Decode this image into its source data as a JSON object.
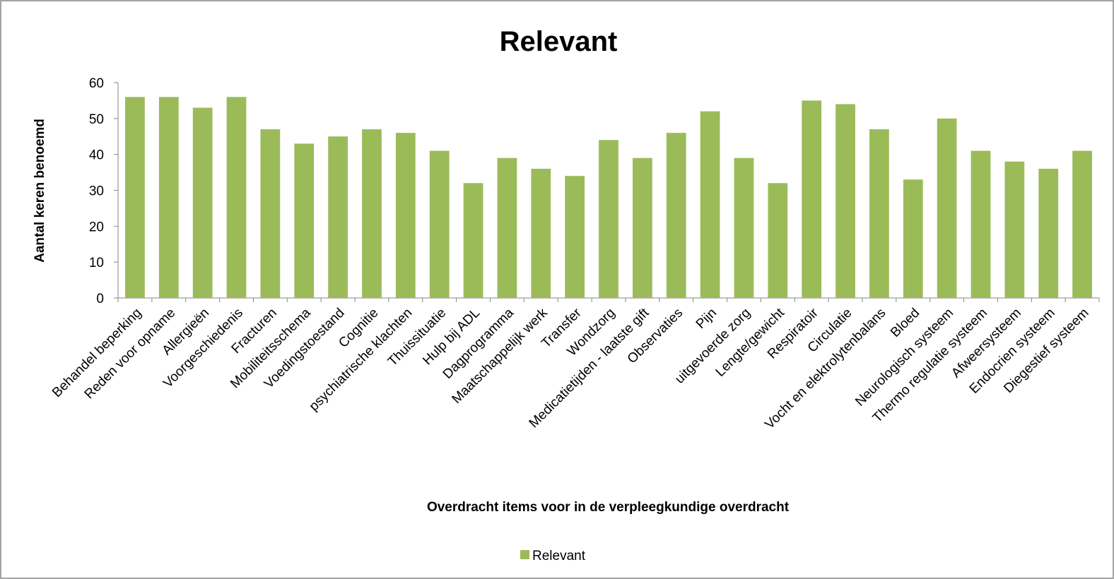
{
  "chart_data": {
    "type": "bar",
    "title": "Relevant",
    "x_label": "Overdracht items voor in de verpleegkundige overdracht",
    "y_label": "Aantal keren benoemd",
    "categories": [
      "Behandel beperking",
      "Reden voor opname",
      "Allergieën",
      "Voorgeschiedenis",
      "Fracturen",
      "Mobiliteitsschema",
      "Voedingstoestand",
      "Cognitie",
      "psychiatrische klachten",
      "Thuissituatie",
      "Hulp bij ADL",
      "Dagprogramma",
      "Maatschappelijk werk",
      "Transfer",
      "Wondzorg",
      "Medicatietijden - laatste gift",
      "Observaties",
      "Pijn",
      "uitgevoerde zorg",
      "Lengte/gewicht",
      "Respiratoir",
      "Circulatie",
      "Vocht en elektrolytenbalans",
      "Bloed",
      "Neurologisch systeem",
      "Thermo regulatie systeem",
      "Afweersysteem",
      "Endocrien systeem",
      "Diegestief systeem"
    ],
    "series": [
      {
        "name": "Relevant",
        "color": "#9bbb59",
        "values": [
          56,
          56,
          53,
          56,
          47,
          43,
          45,
          47,
          46,
          41,
          32,
          39,
          36,
          34,
          44,
          39,
          46,
          52,
          39,
          32,
          55,
          54,
          47,
          33,
          50,
          41,
          38,
          36,
          41
        ]
      }
    ],
    "ylim": [
      0,
      60
    ],
    "yticks": [
      0,
      10,
      20,
      30,
      40,
      50,
      60
    ],
    "grid": false,
    "legend": "bottom"
  }
}
